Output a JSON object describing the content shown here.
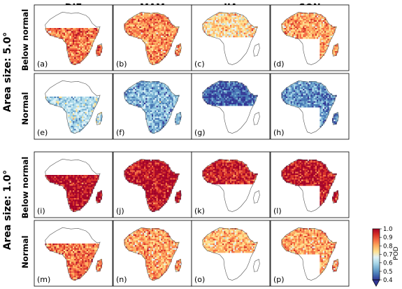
{
  "figure": {
    "columns": [
      "DJF",
      "MAM",
      "JJA",
      "SON"
    ],
    "area_groups": [
      {
        "label": "Area size: 5.0°",
        "rows": [
          "Below normal",
          "Normal"
        ]
      },
      {
        "label": "Area size: 1.0°",
        "rows": [
          "Below normal",
          "Normal"
        ]
      }
    ],
    "panel_labels": [
      "(a)",
      "(b)",
      "(c)",
      "(d)",
      "(e)",
      "(f)",
      "(g)",
      "(h)",
      "(i)",
      "(j)",
      "(k)",
      "(l)",
      "(m)",
      "(n)",
      "(o)",
      "(p)"
    ]
  },
  "colorbar": {
    "label": "POD",
    "ticks": [
      "0.4",
      "0.5",
      "0.6",
      "0.7",
      "0.8",
      "0.9",
      "1.0"
    ],
    "min": 0.4,
    "max": 1.0,
    "extend": "min",
    "colors": [
      "#313695",
      "#4575b4",
      "#74add1",
      "#abd9e9",
      "#e0f3f8",
      "#fee090",
      "#fdae61",
      "#f46d43",
      "#d73027",
      "#a50026"
    ]
  },
  "panels": [
    {
      "label": "(a)",
      "season": "DJF",
      "mean_pod": 0.84,
      "coverage": "southern"
    },
    {
      "label": "(b)",
      "season": "MAM",
      "mean_pod": 0.82,
      "coverage": "full"
    },
    {
      "label": "(c)",
      "season": "JJA",
      "mean_pod": 0.74,
      "coverage": "northern"
    },
    {
      "label": "(d)",
      "season": "SON",
      "mean_pod": 0.8,
      "coverage": "north_east"
    },
    {
      "label": "(e)",
      "season": "DJF",
      "mean_pod": 0.62,
      "coverage": "southern"
    },
    {
      "label": "(f)",
      "season": "MAM",
      "mean_pod": 0.56,
      "coverage": "full"
    },
    {
      "label": "(g)",
      "season": "JJA",
      "mean_pod": 0.47,
      "coverage": "northern"
    },
    {
      "label": "(h)",
      "season": "SON",
      "mean_pod": 0.52,
      "coverage": "north_east"
    },
    {
      "label": "(i)",
      "season": "DJF",
      "mean_pod": 0.96,
      "coverage": "southern"
    },
    {
      "label": "(j)",
      "season": "MAM",
      "mean_pod": 0.95,
      "coverage": "full"
    },
    {
      "label": "(k)",
      "season": "JJA",
      "mean_pod": 0.93,
      "coverage": "northern"
    },
    {
      "label": "(l)",
      "season": "SON",
      "mean_pod": 0.94,
      "coverage": "north_east"
    },
    {
      "label": "(m)",
      "season": "DJF",
      "mean_pod": 0.85,
      "coverage": "southern"
    },
    {
      "label": "(n)",
      "season": "MAM",
      "mean_pod": 0.8,
      "coverage": "full"
    },
    {
      "label": "(o)",
      "season": "JJA",
      "mean_pod": 0.78,
      "coverage": "northern"
    },
    {
      "label": "(p)",
      "season": "SON",
      "mean_pod": 0.8,
      "coverage": "north_east"
    }
  ]
}
